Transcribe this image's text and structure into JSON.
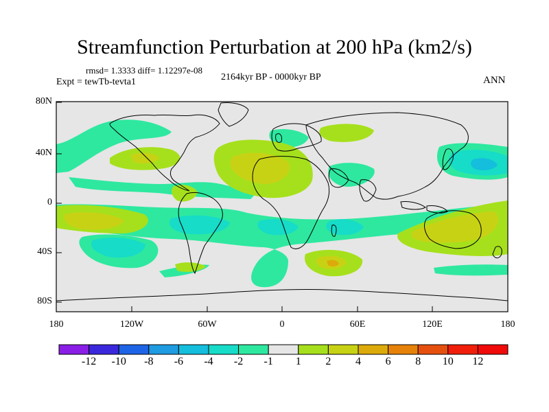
{
  "header": {
    "title": "Streamfunction Perturbation at 200 hPa (km2/s)",
    "stats": "rmsd= 1.3333 diff= 1.12297e-08",
    "experiment": "Expt = tewTb-tevta1",
    "period": "2164kyr BP - 0000kyr BP",
    "season": "ANN"
  },
  "axes": {
    "y_ticks": [
      "80N",
      "40N",
      "0",
      "40S",
      "80S"
    ],
    "x_ticks": [
      "180",
      "120W",
      "60W",
      "0",
      "60E",
      "120E",
      "180"
    ]
  },
  "colorbar": {
    "labels": [
      "-12",
      "-10",
      "-8",
      "-6",
      "-4",
      "-2",
      "-1",
      "1",
      "2",
      "4",
      "6",
      "8",
      "10",
      "12"
    ],
    "colors": [
      "#8a1ee6",
      "#3c28dc",
      "#1e64e6",
      "#1e9be1",
      "#14bedc",
      "#16dcc8",
      "#2ee8a0",
      "#e6e6e6",
      "#a6e01c",
      "#c8d214",
      "#dcaa0a",
      "#e6820a",
      "#e6500f",
      "#f01e0a",
      "#f00a0a"
    ]
  }
}
